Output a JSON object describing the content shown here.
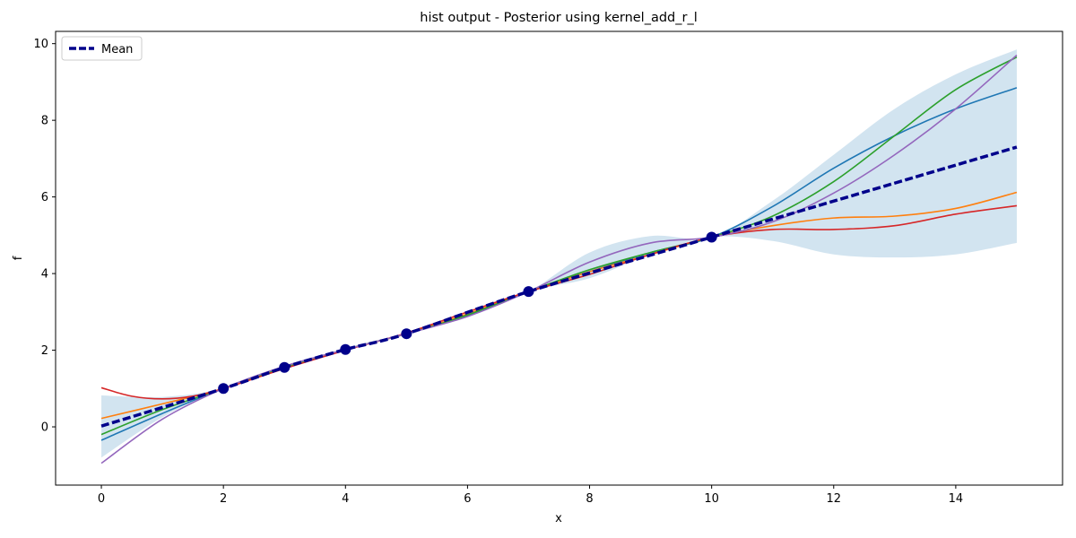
{
  "chart_data": {
    "type": "line",
    "title": "hist output - Posterior using kernel_add_r_l",
    "xlabel": "x",
    "ylabel": "f",
    "xlim": [
      -0.75,
      15.75
    ],
    "ylim": [
      -1.52,
      10.32
    ],
    "xticks": [
      0,
      2,
      4,
      6,
      8,
      10,
      12,
      14
    ],
    "yticks": [
      0,
      2,
      4,
      6,
      8,
      10
    ],
    "grid": false,
    "legend_placement": "upper-left",
    "legend": [
      {
        "label": "Mean",
        "color": "#00008b",
        "style": "dashed"
      }
    ],
    "mean": {
      "name": "Mean",
      "color": "#00008b",
      "x": [
        0,
        2,
        3,
        4,
        5,
        7,
        10,
        15
      ],
      "y": [
        0.02,
        1.0,
        1.55,
        2.02,
        2.43,
        3.53,
        4.95,
        7.3
      ]
    },
    "confidence_band": {
      "color": "#1f77b4",
      "x": [
        0,
        1,
        2,
        3,
        4,
        5,
        6,
        7,
        8,
        9,
        10,
        11,
        12,
        13,
        14,
        15
      ],
      "lower": [
        -0.8,
        0.25,
        1.0,
        1.55,
        2.02,
        2.43,
        2.9,
        3.53,
        3.88,
        4.5,
        4.95,
        4.85,
        4.5,
        4.42,
        4.5,
        4.8
      ],
      "upper": [
        0.82,
        0.78,
        1.0,
        1.55,
        2.02,
        2.43,
        2.95,
        3.53,
        4.55,
        4.98,
        4.95,
        5.9,
        7.1,
        8.3,
        9.2,
        9.85
      ]
    },
    "observations": {
      "color": "#00008b",
      "x": [
        2,
        3,
        4,
        5,
        7,
        10
      ],
      "y": [
        1.0,
        1.55,
        2.02,
        2.43,
        3.53,
        4.95
      ]
    },
    "samples": [
      {
        "color": "#1f77b4",
        "x": [
          0,
          1,
          2,
          3,
          4,
          5,
          6,
          7,
          8,
          9,
          10,
          11,
          12,
          13,
          14,
          15
        ],
        "y": [
          -0.35,
          0.35,
          1.0,
          1.55,
          2.02,
          2.43,
          2.9,
          3.53,
          4.05,
          4.55,
          4.95,
          5.75,
          6.75,
          7.6,
          8.3,
          8.85
        ]
      },
      {
        "color": "#ff7f0e",
        "x": [
          0,
          1,
          2,
          3,
          4,
          5,
          6,
          7,
          8,
          9,
          10,
          11,
          12,
          13,
          14,
          15
        ],
        "y": [
          0.22,
          0.6,
          1.0,
          1.55,
          2.02,
          2.43,
          2.95,
          3.53,
          4.05,
          4.5,
          4.95,
          5.25,
          5.45,
          5.5,
          5.7,
          6.12
        ]
      },
      {
        "color": "#2ca02c",
        "x": [
          0,
          1,
          2,
          3,
          4,
          5,
          6,
          7,
          8,
          9,
          10,
          11,
          12,
          13,
          14,
          15
        ],
        "y": [
          -0.2,
          0.45,
          1.0,
          1.55,
          2.02,
          2.43,
          2.92,
          3.53,
          4.1,
          4.55,
          4.95,
          5.5,
          6.4,
          7.6,
          8.8,
          9.65
        ]
      },
      {
        "color": "#d62728",
        "x": [
          0,
          0.5,
          1,
          1.5,
          2,
          3,
          4,
          5,
          6,
          7,
          8,
          9,
          10,
          11,
          12,
          13,
          14,
          15
        ],
        "y": [
          1.02,
          0.8,
          0.73,
          0.8,
          1.0,
          1.52,
          2.0,
          2.45,
          3.0,
          3.53,
          3.98,
          4.5,
          4.95,
          5.15,
          5.15,
          5.25,
          5.55,
          5.77
        ]
      },
      {
        "color": "#9467bd",
        "x": [
          0,
          1,
          2,
          3,
          4,
          5,
          6,
          7,
          8,
          9,
          10,
          11,
          12,
          13,
          14,
          15
        ],
        "y": [
          -0.95,
          0.2,
          1.0,
          1.58,
          2.02,
          2.43,
          2.88,
          3.53,
          4.3,
          4.8,
          4.95,
          5.35,
          6.1,
          7.1,
          8.3,
          9.7
        ]
      }
    ]
  }
}
